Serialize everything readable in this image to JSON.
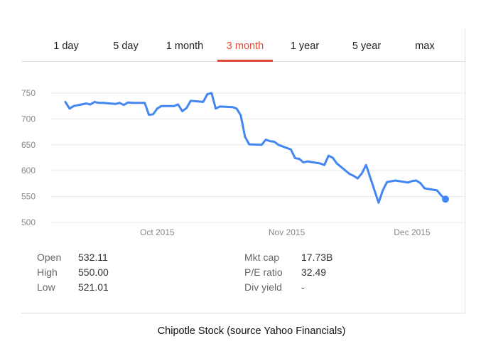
{
  "tabs": [
    {
      "label": "1 day",
      "active": false
    },
    {
      "label": "5 day",
      "active": false
    },
    {
      "label": "1 month",
      "active": false
    },
    {
      "label": "3 month",
      "active": true
    },
    {
      "label": "1 year",
      "active": false
    },
    {
      "label": "5 year",
      "active": false
    },
    {
      "label": "max",
      "active": false
    }
  ],
  "chart_data": {
    "type": "line",
    "title": "",
    "xlabel": "",
    "ylabel": "",
    "ylim": [
      500,
      750
    ],
    "yticks": [
      750,
      700,
      650,
      600,
      550,
      500
    ],
    "x_tick_labels": [
      "Oct 2015",
      "Nov 2015",
      "Dec 2015"
    ],
    "grid": true,
    "line_color": "#4285f4",
    "series": [
      {
        "x": [
          "2015-09-09",
          "2015-09-10",
          "2015-09-11",
          "2015-09-14",
          "2015-09-15",
          "2015-09-16",
          "2015-09-17",
          "2015-09-18",
          "2015-09-21",
          "2015-09-22",
          "2015-09-23",
          "2015-09-24",
          "2015-09-25",
          "2015-09-28",
          "2015-09-29",
          "2015-09-30",
          "2015-10-01",
          "2015-10-02",
          "2015-10-05",
          "2015-10-06",
          "2015-10-07",
          "2015-10-08",
          "2015-10-09",
          "2015-10-12",
          "2015-10-13",
          "2015-10-14",
          "2015-10-15",
          "2015-10-16",
          "2015-10-19",
          "2015-10-20",
          "2015-10-21",
          "2015-10-22",
          "2015-10-23",
          "2015-10-26",
          "2015-10-27",
          "2015-10-28",
          "2015-10-29",
          "2015-10-30",
          "2015-11-02",
          "2015-11-03",
          "2015-11-04",
          "2015-11-05",
          "2015-11-06",
          "2015-11-09",
          "2015-11-10",
          "2015-11-11",
          "2015-11-12",
          "2015-11-13",
          "2015-11-16",
          "2015-11-17",
          "2015-11-18",
          "2015-11-19",
          "2015-11-20",
          "2015-11-23",
          "2015-11-24",
          "2015-11-25",
          "2015-11-27",
          "2015-11-30",
          "2015-12-01",
          "2015-12-02",
          "2015-12-03",
          "2015-12-04",
          "2015-12-07",
          "2015-12-08",
          "2015-12-09"
        ],
        "values": [
          733,
          720,
          725,
          730,
          728,
          733,
          731,
          731,
          729,
          731,
          727,
          732,
          731,
          731,
          708,
          709,
          720,
          725,
          725,
          728,
          715,
          721,
          735,
          733,
          748,
          750,
          720,
          724,
          723,
          720,
          707,
          666,
          651,
          650,
          660,
          657,
          656,
          650,
          641,
          624,
          623,
          616,
          618,
          614,
          611,
          629,
          625,
          614,
          594,
          590,
          585,
          595,
          611,
          538,
          562,
          578,
          581,
          577,
          580,
          581,
          576,
          566,
          562,
          552,
          545
        ]
      }
    ]
  },
  "stats": {
    "left": [
      {
        "label": "Open",
        "value": "532.11"
      },
      {
        "label": "High",
        "value": "550.00"
      },
      {
        "label": "Low",
        "value": "521.01"
      }
    ],
    "right": [
      {
        "label": "Mkt cap",
        "value": "17.73B"
      },
      {
        "label": "P/E ratio",
        "value": "32.49"
      },
      {
        "label": "Div yield",
        "value": "-"
      }
    ]
  },
  "caption": "Chipotle Stock (source Yahoo Financials)"
}
